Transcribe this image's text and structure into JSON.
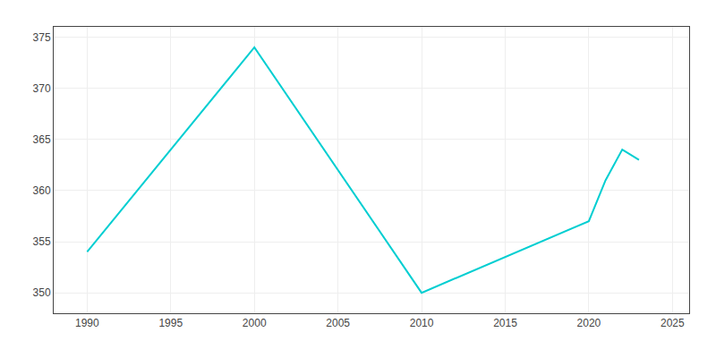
{
  "chart_data": {
    "type": "line",
    "x": [
      1990,
      2000,
      2010,
      2020,
      2021,
      2022,
      2023
    ],
    "values": [
      354,
      374,
      350,
      357,
      361,
      364,
      363
    ],
    "color": "#00CED1",
    "xlim": [
      1988,
      2026
    ],
    "ylim": [
      348,
      376
    ],
    "xticks": [
      1990,
      1995,
      2000,
      2005,
      2010,
      2015,
      2020,
      2025
    ],
    "yticks": [
      350,
      355,
      360,
      365,
      370,
      375
    ],
    "grid": true
  }
}
